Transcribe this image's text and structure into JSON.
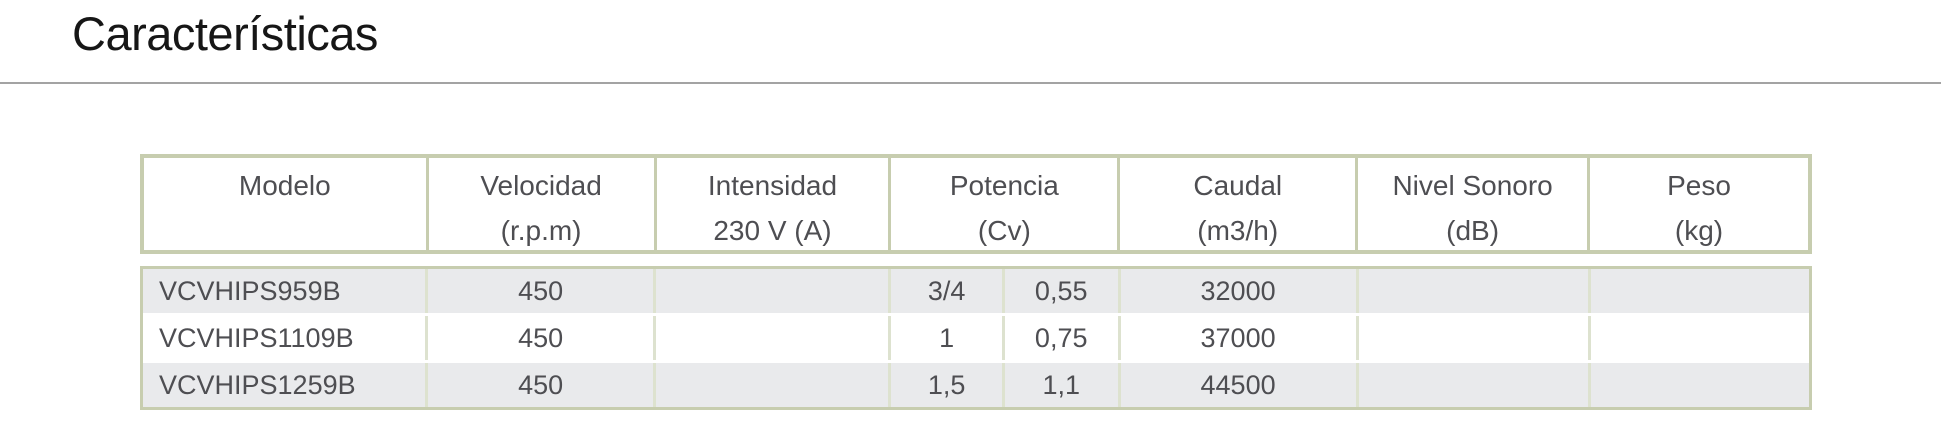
{
  "page": {
    "title": "Características"
  },
  "colors": {
    "table_border": "#c7cdaf",
    "body_inner_border": "#dde2cf",
    "row_stripe": "#e9eaec",
    "text": "#4e4e52",
    "title_text": "#161616",
    "title_rule": "#a3a3a3"
  },
  "table": {
    "headers": [
      {
        "line1": "Modelo",
        "line2": ""
      },
      {
        "line1": "Velocidad",
        "line2": "(r.p.m)"
      },
      {
        "line1": "Intensidad",
        "line2": "230 V (A)"
      },
      {
        "line1": "Potencia",
        "line2": "(Cv)"
      },
      {
        "line1": "Caudal",
        "line2": "(m3/h)"
      },
      {
        "line1": "Nivel Sonoro",
        "line2": "(dB)"
      },
      {
        "line1": "Peso",
        "line2": "(kg)"
      }
    ],
    "rows": [
      {
        "modelo": "VCVHIPS959B",
        "velocidad": "450",
        "intensidad": "",
        "potencia_a": "3/4",
        "potencia_b": "0,55",
        "caudal": "32000",
        "nivel_sonoro": "",
        "peso": ""
      },
      {
        "modelo": "VCVHIPS1109B",
        "velocidad": "450",
        "intensidad": "",
        "potencia_a": "1",
        "potencia_b": "0,75",
        "caudal": "37000",
        "nivel_sonoro": "",
        "peso": ""
      },
      {
        "modelo": "VCVHIPS1259B",
        "velocidad": "450",
        "intensidad": "",
        "potencia_a": "1,5",
        "potencia_b": "1,1",
        "caudal": "44500",
        "nivel_sonoro": "",
        "peso": ""
      }
    ]
  }
}
